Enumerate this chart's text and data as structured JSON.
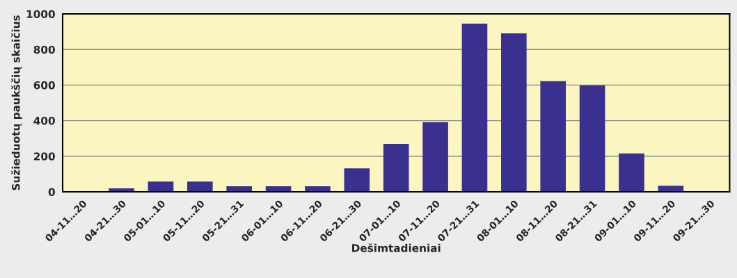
{
  "chart_data": {
    "type": "bar",
    "xlabel": "Dešimtadieniai",
    "ylabel": "Sužieduotų paukščių skaičius",
    "categories": [
      "04-11…20",
      "04-21…30",
      "05-01…10",
      "05-11…20",
      "05-21…31",
      "06-01…10",
      "06-11…20",
      "06-21…30",
      "07-01…10",
      "07-11…20",
      "07-21…31",
      "08-01…10",
      "08-11…20",
      "08-21…31",
      "09-01…10",
      "09-11…20",
      "09-21…30"
    ],
    "values": [
      0,
      20,
      58,
      58,
      31,
      31,
      31,
      132,
      270,
      392,
      945,
      891,
      622,
      598,
      216,
      34,
      0
    ],
    "color": "#3a3090",
    "ylim": [
      0,
      1000
    ],
    "yticks": [
      0,
      200,
      400,
      600,
      800,
      1000
    ],
    "grid": "y",
    "legend": false
  }
}
